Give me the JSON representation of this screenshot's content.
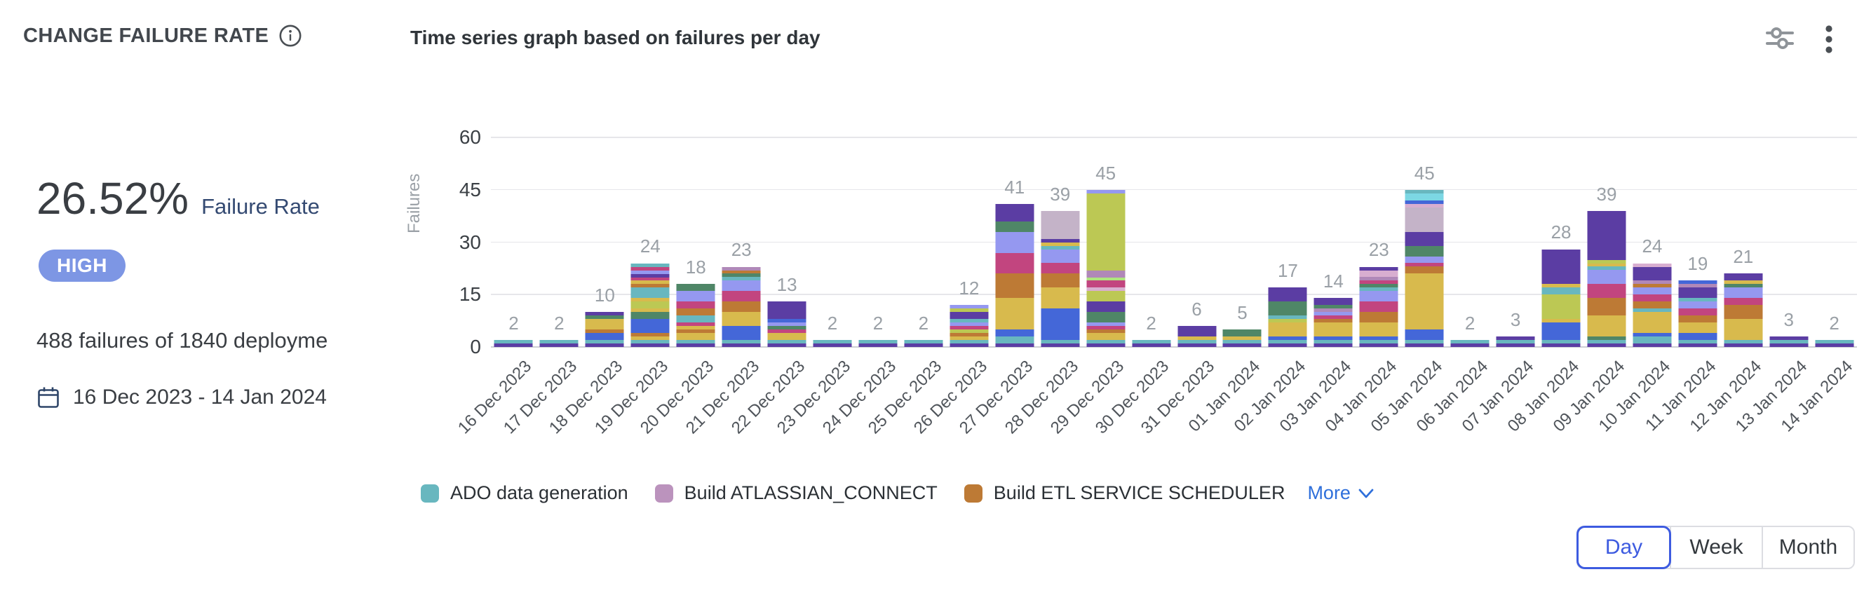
{
  "header": {
    "title": "CHANGE FAILURE RATE",
    "subtitle": "Time series graph based on failures per day"
  },
  "icons": {
    "info": "info-circle",
    "settings": "sliders-horizontal",
    "menu": "kebab-vertical-dots",
    "calendar": "calendar-outline",
    "more_chevron": "chevron-down"
  },
  "stats": {
    "rate_value": "26.52%",
    "rate_label": "Failure Rate",
    "severity": "HIGH",
    "severity_color": "#7d96e4",
    "summary": "488 failures of 1840 deployme",
    "date_range": "16 Dec 2023 - 14 Jan 2024"
  },
  "legend": {
    "items": [
      {
        "label": "ADO data generation",
        "color": "#68b7bf"
      },
      {
        "label": "Build ATLASSIAN_CONNECT",
        "color": "#bb93bd"
      },
      {
        "label": "Build ETL SERVICE SCHEDULER",
        "color": "#bd7a35"
      }
    ],
    "more_label": "More"
  },
  "granularity": {
    "options": [
      "Day",
      "Week",
      "Month"
    ],
    "selected": "Day"
  },
  "chart_data": {
    "type": "bar",
    "stacked": true,
    "title": "Time series graph based on failures per day",
    "xlabel": "",
    "ylabel": "Failures",
    "ylim": [
      0,
      60
    ],
    "yticks": [
      0,
      15,
      30,
      45,
      60
    ],
    "grid": true,
    "legend_position": "bottom",
    "categories": [
      "16 Dec 2023",
      "17 Dec 2023",
      "18 Dec 2023",
      "19 Dec 2023",
      "20 Dec 2023",
      "21 Dec 2023",
      "22 Dec 2023",
      "23 Dec 2023",
      "24 Dec 2023",
      "25 Dec 2023",
      "26 Dec 2023",
      "27 Dec 2023",
      "28 Dec 2023",
      "29 Dec 2023",
      "30 Dec 2023",
      "31 Dec 2023",
      "01 Jan 2024",
      "02 Jan 2024",
      "03 Jan 2024",
      "04 Jan 2024",
      "05 Jan 2024",
      "06 Jan 2024",
      "07 Jan 2024",
      "08 Jan 2024",
      "09 Jan 2024",
      "10 Jan 2024",
      "11 Jan 2024",
      "12 Jan 2024",
      "13 Jan 2024",
      "14 Jan 2024"
    ],
    "totals": [
      2,
      2,
      10,
      24,
      18,
      23,
      13,
      2,
      2,
      2,
      12,
      41,
      39,
      45,
      2,
      6,
      5,
      17,
      14,
      23,
      45,
      2,
      3,
      28,
      39,
      24,
      19,
      21,
      3,
      2
    ],
    "palette": {
      "violet": "#5b3da3",
      "teal": "#68b7bf",
      "blue": "#4467d8",
      "gold": "#d8ba4d",
      "orange": "#bd7a35",
      "magenta": "#c2457f",
      "periwinkle": "#9598f0",
      "green": "#4f8667",
      "lime": "#bcc854",
      "mauve": "#b088b8",
      "grayMauve": "#c4b3c8",
      "lightPink": "#d8aed0",
      "cyan": "#7cd7e4",
      "lightLime": "#aee47e"
    },
    "bars": [
      {
        "label": "16 Dec 2023",
        "total": 2,
        "segments": [
          [
            "violet",
            1
          ],
          [
            "teal",
            1
          ]
        ]
      },
      {
        "label": "17 Dec 2023",
        "total": 2,
        "segments": [
          [
            "violet",
            1
          ],
          [
            "teal",
            1
          ]
        ]
      },
      {
        "label": "18 Dec 2023",
        "total": 10,
        "segments": [
          [
            "violet",
            1
          ],
          [
            "teal",
            1
          ],
          [
            "blue",
            2
          ],
          [
            "orange",
            1
          ],
          [
            "gold",
            3
          ],
          [
            "green",
            1
          ],
          [
            "violet",
            1
          ]
        ]
      },
      {
        "label": "19 Dec 2023",
        "total": 24,
        "segments": [
          [
            "violet",
            1
          ],
          [
            "teal",
            1
          ],
          [
            "gold",
            1
          ],
          [
            "orange",
            1
          ],
          [
            "blue",
            4
          ],
          [
            "green",
            2
          ],
          [
            "gold",
            1
          ],
          [
            "lime",
            2
          ],
          [
            "gold",
            1
          ],
          [
            "teal",
            3
          ],
          [
            "orange",
            1
          ],
          [
            "gold",
            1
          ],
          [
            "magenta",
            1
          ],
          [
            "violet",
            1
          ],
          [
            "periwinkle",
            1
          ],
          [
            "magenta",
            1
          ],
          [
            "teal",
            1
          ]
        ]
      },
      {
        "label": "20 Dec 2023",
        "total": 18,
        "segments": [
          [
            "violet",
            1
          ],
          [
            "teal",
            1
          ],
          [
            "gold",
            2
          ],
          [
            "orange",
            1
          ],
          [
            "gold",
            1
          ],
          [
            "magenta",
            1
          ],
          [
            "teal",
            2
          ],
          [
            "orange",
            2
          ],
          [
            "magenta",
            2
          ],
          [
            "periwinkle",
            3
          ],
          [
            "green",
            2
          ]
        ]
      },
      {
        "label": "21 Dec 2023",
        "total": 23,
        "segments": [
          [
            "violet",
            1
          ],
          [
            "teal",
            1
          ],
          [
            "blue",
            4
          ],
          [
            "gold",
            4
          ],
          [
            "orange",
            3
          ],
          [
            "magenta",
            3
          ],
          [
            "periwinkle",
            3
          ],
          [
            "teal",
            1
          ],
          [
            "green",
            1
          ],
          [
            "orange",
            1
          ],
          [
            "mauve",
            1
          ]
        ]
      },
      {
        "label": "22 Dec 2023",
        "total": 13,
        "segments": [
          [
            "violet",
            1
          ],
          [
            "teal",
            1
          ],
          [
            "gold",
            2
          ],
          [
            "magenta",
            1
          ],
          [
            "green",
            1
          ],
          [
            "periwinkle",
            1
          ],
          [
            "blue",
            1
          ],
          [
            "violet",
            5
          ]
        ]
      },
      {
        "label": "23 Dec 2023",
        "total": 2,
        "segments": [
          [
            "violet",
            1
          ],
          [
            "teal",
            1
          ]
        ]
      },
      {
        "label": "24 Dec 2023",
        "total": 2,
        "segments": [
          [
            "violet",
            1
          ],
          [
            "teal",
            1
          ]
        ]
      },
      {
        "label": "25 Dec 2023",
        "total": 2,
        "segments": [
          [
            "violet",
            1
          ],
          [
            "teal",
            1
          ]
        ]
      },
      {
        "label": "26 Dec 2023",
        "total": 12,
        "segments": [
          [
            "violet",
            1
          ],
          [
            "teal",
            1
          ],
          [
            "gold",
            1
          ],
          [
            "orange",
            1
          ],
          [
            "lime",
            1
          ],
          [
            "magenta",
            1
          ],
          [
            "periwinkle",
            1
          ],
          [
            "teal",
            1
          ],
          [
            "violet",
            2
          ],
          [
            "lime",
            1
          ],
          [
            "periwinkle",
            1
          ]
        ]
      },
      {
        "label": "27 Dec 2023",
        "total": 41,
        "segments": [
          [
            "violet",
            1
          ],
          [
            "teal",
            2
          ],
          [
            "blue",
            2
          ],
          [
            "gold",
            9
          ],
          [
            "orange",
            7
          ],
          [
            "magenta",
            6
          ],
          [
            "periwinkle",
            6
          ],
          [
            "green",
            3
          ],
          [
            "violet",
            5
          ]
        ]
      },
      {
        "label": "28 Dec 2023",
        "total": 39,
        "segments": [
          [
            "violet",
            1
          ],
          [
            "teal",
            1
          ],
          [
            "blue",
            9
          ],
          [
            "gold",
            6
          ],
          [
            "orange",
            4
          ],
          [
            "magenta",
            3
          ],
          [
            "periwinkle",
            4
          ],
          [
            "teal",
            1
          ],
          [
            "gold",
            1
          ],
          [
            "violet",
            1
          ],
          [
            "grayMauve",
            8
          ]
        ]
      },
      {
        "label": "29 Dec 2023",
        "total": 45,
        "segments": [
          [
            "violet",
            1
          ],
          [
            "teal",
            1
          ],
          [
            "gold",
            2
          ],
          [
            "orange",
            1
          ],
          [
            "magenta",
            1
          ],
          [
            "periwinkle",
            1
          ],
          [
            "green",
            3
          ],
          [
            "violet",
            3
          ],
          [
            "lime",
            3
          ],
          [
            "lightPink",
            1
          ],
          [
            "magenta",
            2
          ],
          [
            "lightLime",
            1
          ],
          [
            "mauve",
            2
          ],
          [
            "lime",
            22
          ],
          [
            "periwinkle",
            1
          ]
        ]
      },
      {
        "label": "30 Dec 2023",
        "total": 2,
        "segments": [
          [
            "violet",
            1
          ],
          [
            "teal",
            1
          ]
        ]
      },
      {
        "label": "31 Dec 2023",
        "total": 6,
        "segments": [
          [
            "violet",
            1
          ],
          [
            "teal",
            1
          ],
          [
            "gold",
            1
          ],
          [
            "violet",
            3
          ]
        ]
      },
      {
        "label": "01 Jan 2024",
        "total": 5,
        "segments": [
          [
            "violet",
            1
          ],
          [
            "teal",
            1
          ],
          [
            "gold",
            1
          ],
          [
            "green",
            2
          ]
        ]
      },
      {
        "label": "02 Jan 2024",
        "total": 17,
        "segments": [
          [
            "violet",
            1
          ],
          [
            "teal",
            1
          ],
          [
            "blue",
            1
          ],
          [
            "gold",
            4
          ],
          [
            "lime",
            1
          ],
          [
            "teal",
            1
          ],
          [
            "green",
            4
          ],
          [
            "violet",
            4
          ]
        ]
      },
      {
        "label": "03 Jan 2024",
        "total": 14,
        "segments": [
          [
            "violet",
            1
          ],
          [
            "teal",
            1
          ],
          [
            "blue",
            1
          ],
          [
            "gold",
            4
          ],
          [
            "orange",
            1
          ],
          [
            "magenta",
            1
          ],
          [
            "periwinkle",
            1
          ],
          [
            "mauve",
            1
          ],
          [
            "green",
            1
          ],
          [
            "violet",
            2
          ]
        ]
      },
      {
        "label": "04 Jan 2024",
        "total": 23,
        "segments": [
          [
            "violet",
            1
          ],
          [
            "teal",
            1
          ],
          [
            "blue",
            1
          ],
          [
            "gold",
            4
          ],
          [
            "orange",
            3
          ],
          [
            "magenta",
            3
          ],
          [
            "periwinkle",
            3
          ],
          [
            "teal",
            1
          ],
          [
            "green",
            1
          ],
          [
            "magenta",
            1
          ],
          [
            "mauve",
            1
          ],
          [
            "lightPink",
            2
          ],
          [
            "violet",
            1
          ]
        ]
      },
      {
        "label": "05 Jan 2024",
        "total": 45,
        "segments": [
          [
            "violet",
            1
          ],
          [
            "teal",
            1
          ],
          [
            "blue",
            3
          ],
          [
            "gold",
            16
          ],
          [
            "orange",
            2
          ],
          [
            "magenta",
            1
          ],
          [
            "periwinkle",
            2
          ],
          [
            "green",
            3
          ],
          [
            "violet",
            4
          ],
          [
            "grayMauve",
            7
          ],
          [
            "lightPink",
            1
          ],
          [
            "blue",
            1
          ],
          [
            "cyan",
            2
          ],
          [
            "teal",
            1
          ]
        ]
      },
      {
        "label": "06 Jan 2024",
        "total": 2,
        "segments": [
          [
            "violet",
            1
          ],
          [
            "teal",
            1
          ]
        ]
      },
      {
        "label": "07 Jan 2024",
        "total": 3,
        "segments": [
          [
            "violet",
            1
          ],
          [
            "teal",
            1
          ],
          [
            "violet",
            1
          ]
        ]
      },
      {
        "label": "08 Jan 2024",
        "total": 28,
        "segments": [
          [
            "violet",
            1
          ],
          [
            "teal",
            1
          ],
          [
            "blue",
            5
          ],
          [
            "gold",
            1
          ],
          [
            "lime",
            7
          ],
          [
            "teal",
            2
          ],
          [
            "gold",
            1
          ],
          [
            "violet",
            10
          ]
        ]
      },
      {
        "label": "09 Jan 2024",
        "total": 39,
        "segments": [
          [
            "violet",
            1
          ],
          [
            "teal",
            1
          ],
          [
            "green",
            1
          ],
          [
            "gold",
            6
          ],
          [
            "orange",
            5
          ],
          [
            "magenta",
            4
          ],
          [
            "periwinkle",
            4
          ],
          [
            "teal",
            1
          ],
          [
            "gold",
            1
          ],
          [
            "lime",
            1
          ],
          [
            "violet",
            14
          ]
        ]
      },
      {
        "label": "10 Jan 2024",
        "total": 24,
        "segments": [
          [
            "violet",
            1
          ],
          [
            "teal",
            2
          ],
          [
            "blue",
            1
          ],
          [
            "gold",
            6
          ],
          [
            "teal",
            1
          ],
          [
            "orange",
            2
          ],
          [
            "magenta",
            2
          ],
          [
            "periwinkle",
            2
          ],
          [
            "orange",
            1
          ],
          [
            "mauve",
            1
          ],
          [
            "violet",
            4
          ],
          [
            "lightPink",
            1
          ]
        ]
      },
      {
        "label": "11 Jan 2024",
        "total": 19,
        "segments": [
          [
            "violet",
            1
          ],
          [
            "teal",
            1
          ],
          [
            "blue",
            2
          ],
          [
            "gold",
            3
          ],
          [
            "orange",
            2
          ],
          [
            "magenta",
            2
          ],
          [
            "periwinkle",
            2
          ],
          [
            "teal",
            1
          ],
          [
            "violet",
            3
          ],
          [
            "mauve",
            1
          ],
          [
            "blue",
            1
          ]
        ]
      },
      {
        "label": "12 Jan 2024",
        "total": 21,
        "segments": [
          [
            "violet",
            1
          ],
          [
            "teal",
            1
          ],
          [
            "gold",
            6
          ],
          [
            "orange",
            4
          ],
          [
            "magenta",
            2
          ],
          [
            "periwinkle",
            3
          ],
          [
            "green",
            1
          ],
          [
            "gold",
            1
          ],
          [
            "violet",
            2
          ]
        ]
      },
      {
        "label": "13 Jan 2024",
        "total": 3,
        "segments": [
          [
            "violet",
            1
          ],
          [
            "teal",
            1
          ],
          [
            "violet",
            1
          ]
        ]
      },
      {
        "label": "14 Jan 2024",
        "total": 2,
        "segments": [
          [
            "violet",
            1
          ],
          [
            "teal",
            1
          ]
        ]
      }
    ]
  }
}
